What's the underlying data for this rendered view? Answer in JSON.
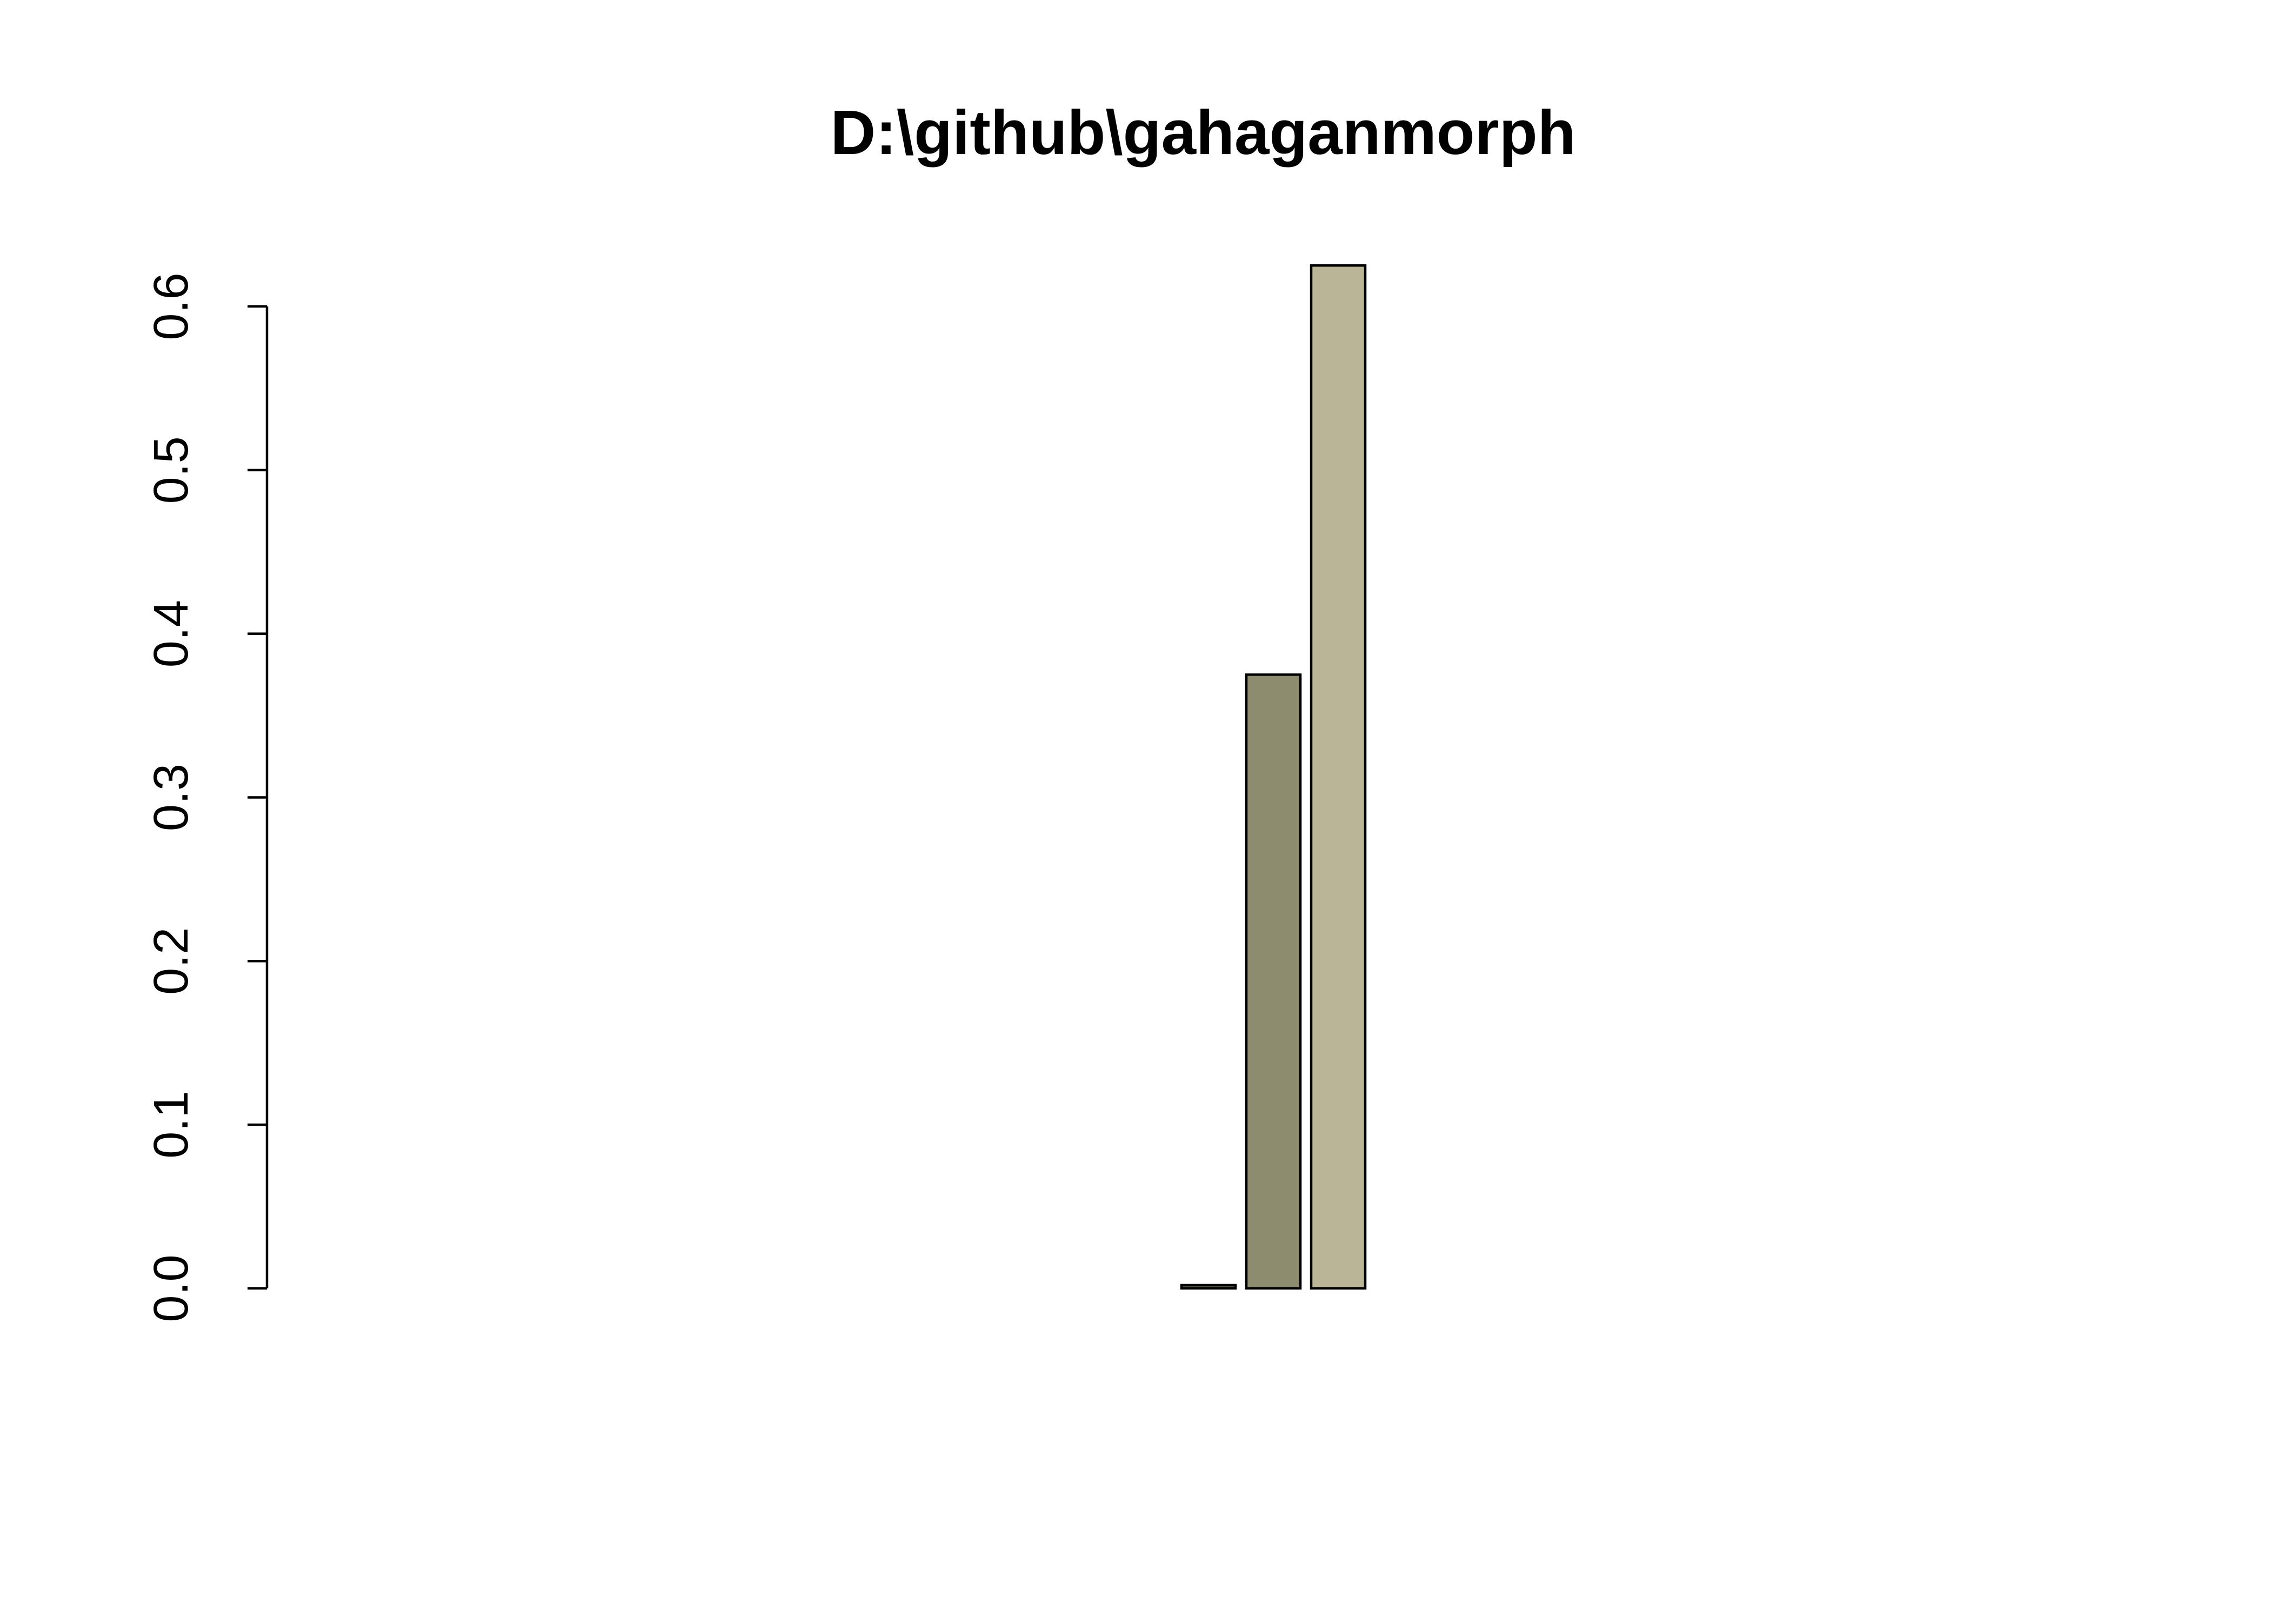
{
  "chart_data": {
    "type": "bar",
    "title": "D:\\github\\gahaganmorph",
    "xlabel": "",
    "ylabel": "",
    "ylim": [
      0,
      0.6
    ],
    "yticks": [
      "0.0",
      "0.1",
      "0.2",
      "0.3",
      "0.4",
      "0.5",
      "0.6"
    ],
    "grid": false,
    "values": [
      0,
      0,
      0,
      0,
      0,
      0,
      0,
      0,
      0,
      0,
      0,
      0,
      0,
      0.002,
      0.375,
      0.625,
      0,
      0,
      0,
      0,
      0,
      0,
      0,
      0,
      0,
      0,
      0,
      0
    ],
    "colors": [
      "#ffffff",
      "#ffffff",
      "#ffffff",
      "#ffffff",
      "#ffffff",
      "#ffffff",
      "#ffffff",
      "#ffffff",
      "#ffffff",
      "#ffffff",
      "#ffffff",
      "#ffffff",
      "#ffffff",
      "#5f5f4a",
      "#8e8c6f",
      "#bab596",
      "#ffffff",
      "#ffffff",
      "#ffffff",
      "#ffffff",
      "#ffffff",
      "#ffffff",
      "#ffffff",
      "#ffffff",
      "#ffffff",
      "#ffffff",
      "#ffffff",
      "#ffffff"
    ]
  }
}
